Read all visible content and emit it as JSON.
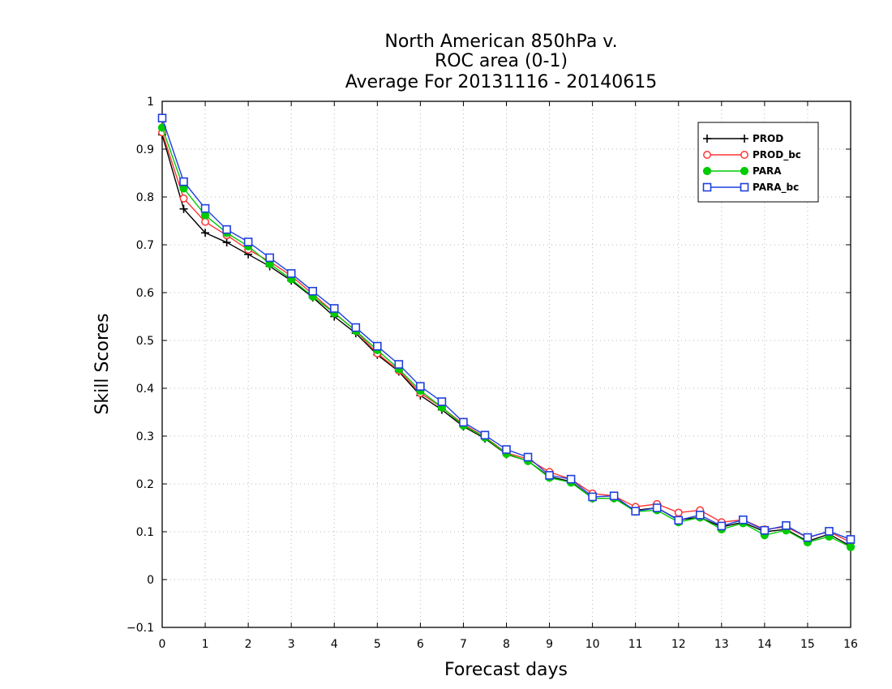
{
  "chart_data": {
    "type": "line",
    "title": [
      "North American 850hPa v.",
      "ROC area (0-1)",
      "Average For 20131116 - 20140615"
    ],
    "xlabel": "Forecast days",
    "ylabel": "Skill Scores",
    "xlim": [
      0,
      16
    ],
    "ylim": [
      -0.1,
      1
    ],
    "grid": true,
    "legend_position": "top-right",
    "x_ticks": [
      0,
      1,
      2,
      3,
      4,
      5,
      6,
      7,
      8,
      9,
      10,
      11,
      12,
      13,
      14,
      15,
      16
    ],
    "y_ticks": [
      -0.1,
      0,
      0.1,
      0.2,
      0.3,
      0.4,
      0.5,
      0.6,
      0.7,
      0.8,
      0.9,
      1
    ],
    "x_tick_labels": [
      "0",
      "1",
      "2",
      "3",
      "4",
      "5",
      "6",
      "7",
      "8",
      "9",
      "10",
      "11",
      "12",
      "13",
      "14",
      "15",
      "16"
    ],
    "y_tick_labels": [
      "−0.1",
      "0",
      "0.1",
      "0.2",
      "0.3",
      "0.4",
      "0.5",
      "0.6",
      "0.7",
      "0.8",
      "0.9",
      "1"
    ],
    "x": [
      0,
      0.5,
      1,
      1.5,
      2,
      2.5,
      3,
      3.5,
      4,
      4.5,
      5,
      5.5,
      6,
      6.5,
      7,
      7.5,
      8,
      8.5,
      9,
      9.5,
      10,
      10.5,
      11,
      11.5,
      12,
      12.5,
      13,
      13.5,
      14,
      14.5,
      15,
      15.5,
      16
    ],
    "series": [
      {
        "name": "PROD",
        "color": "#000000",
        "marker": "plus",
        "values": [
          0.93,
          0.775,
          0.725,
          0.705,
          0.68,
          0.655,
          0.625,
          0.59,
          0.55,
          0.515,
          0.47,
          0.435,
          0.385,
          0.355,
          0.32,
          0.295,
          0.262,
          0.248,
          0.215,
          0.205,
          0.17,
          0.17,
          0.145,
          0.15,
          0.125,
          0.13,
          0.11,
          0.12,
          0.1,
          0.105,
          0.08,
          0.095,
          0.07
        ]
      },
      {
        "name": "PROD_bc",
        "color": "#ff3333",
        "marker": "open-circle",
        "values": [
          0.935,
          0.797,
          0.748,
          0.72,
          0.69,
          0.665,
          0.635,
          0.597,
          0.558,
          0.52,
          0.473,
          0.437,
          0.39,
          0.36,
          0.325,
          0.298,
          0.265,
          0.252,
          0.225,
          0.21,
          0.18,
          0.175,
          0.152,
          0.158,
          0.14,
          0.145,
          0.12,
          0.125,
          0.105,
          0.11,
          0.088,
          0.1,
          0.078
        ]
      },
      {
        "name": "PARA",
        "color": "#00cc00",
        "marker": "filled-circle",
        "values": [
          0.945,
          0.818,
          0.762,
          0.725,
          0.697,
          0.66,
          0.628,
          0.592,
          0.557,
          0.52,
          0.48,
          0.44,
          0.395,
          0.36,
          0.322,
          0.297,
          0.263,
          0.248,
          0.213,
          0.203,
          0.17,
          0.17,
          0.142,
          0.145,
          0.12,
          0.13,
          0.105,
          0.118,
          0.093,
          0.103,
          0.078,
          0.09,
          0.068
        ]
      },
      {
        "name": "PARA_bc",
        "color": "#1f3fdd",
        "marker": "open-square",
        "values": [
          0.965,
          0.832,
          0.776,
          0.732,
          0.706,
          0.673,
          0.64,
          0.603,
          0.567,
          0.527,
          0.488,
          0.45,
          0.404,
          0.372,
          0.329,
          0.302,
          0.272,
          0.256,
          0.218,
          0.21,
          0.173,
          0.175,
          0.143,
          0.15,
          0.124,
          0.135,
          0.112,
          0.125,
          0.103,
          0.113,
          0.088,
          0.101,
          0.084
        ]
      }
    ]
  }
}
